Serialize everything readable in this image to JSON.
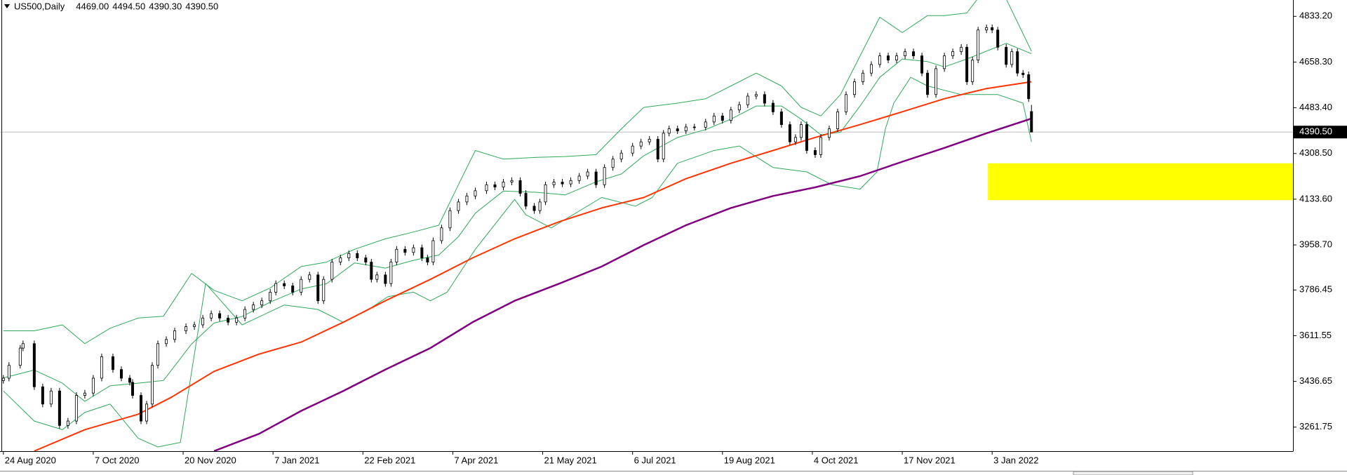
{
  "chart_data": {
    "type": "candlestick",
    "symbol": "US500,Daily",
    "header_values": [
      {
        "value": 4469,
        "label": "4469.00"
      },
      {
        "value": 4494.5,
        "label": "4494.50"
      },
      {
        "value": 4390.3,
        "label": "4390.30"
      },
      {
        "value": 4390.5,
        "label": "4390.50"
      }
    ],
    "xlim": [
      -1.2,
      459.1
    ],
    "ylim": [
      3169.8,
      4895.7
    ],
    "xticks": [
      {
        "value": 0,
        "label": "24 Aug 2020"
      },
      {
        "value": 32,
        "label": "7 Oct 2020"
      },
      {
        "value": 64,
        "label": "20 Nov 2020"
      },
      {
        "value": 96,
        "label": "7 Jan 2021"
      },
      {
        "value": 128,
        "label": "22 Feb 2021"
      },
      {
        "value": 160,
        "label": "7 Apr 2021"
      },
      {
        "value": 192,
        "label": "21 May 2021"
      },
      {
        "value": 224,
        "label": "6 Jul 2021"
      },
      {
        "value": 256,
        "label": "19 Aug 2021"
      },
      {
        "value": 288,
        "label": "4 Oct 2021"
      },
      {
        "value": 320,
        "label": "17 Nov 2021"
      },
      {
        "value": 352,
        "label": "3 Jan 2022"
      }
    ],
    "yticks": [
      {
        "value": 4833.2,
        "label": "4833.20"
      },
      {
        "value": 4658.3,
        "label": "4658.30"
      },
      {
        "value": 4483.4,
        "label": "4483.40"
      },
      {
        "value": 4308.5,
        "label": "4308.50"
      },
      {
        "value": 4133.6,
        "label": "4133.60"
      },
      {
        "value": 3958.7,
        "label": "3958.70"
      },
      {
        "value": 3786.45,
        "label": "3786.45"
      },
      {
        "value": 3611.55,
        "label": "3611.55"
      },
      {
        "value": 3436.65,
        "label": "3436.65"
      },
      {
        "value": 3261.75,
        "label": "3261.75"
      }
    ],
    "last_price": {
      "value": 4390.5,
      "label": "4390.50"
    },
    "zone": {
      "color": "#ffff00",
      "x_start": 350.5,
      "ylim": [
        4130,
        4271
      ]
    },
    "candles": {
      "x": [
        0,
        2,
        6,
        7,
        11,
        14,
        17,
        20,
        23,
        26,
        29,
        32,
        35,
        39,
        42,
        45,
        46,
        49,
        51,
        53,
        55,
        58,
        61,
        65,
        68,
        71,
        74,
        77,
        80,
        83,
        86,
        89,
        92,
        95,
        97,
        100,
        103,
        106,
        109,
        112,
        114,
        117,
        120,
        123,
        126,
        129,
        131,
        133,
        136,
        138,
        140,
        143,
        146,
        149,
        151,
        153,
        156,
        159,
        162,
        165,
        168,
        172,
        175,
        178,
        181,
        184,
        186,
        189,
        191,
        193,
        196,
        199,
        202,
        205,
        208,
        211,
        214,
        217,
        220,
        224,
        227,
        230,
        233,
        235,
        237,
        240,
        243,
        246,
        250,
        253,
        256,
        259,
        262,
        265,
        268,
        271,
        274,
        277,
        280,
        282,
        284,
        286,
        289,
        291,
        294,
        297,
        300,
        303,
        306,
        309,
        312,
        315,
        318,
        321,
        324,
        327,
        329,
        332,
        335,
        338,
        341,
        343,
        345,
        347,
        350,
        352,
        354,
        357,
        359,
        361,
        363,
        365,
        366
      ],
      "open": [
        3440,
        3449,
        3498,
        3564,
        3581,
        3416,
        3350,
        3400,
        3268,
        3285,
        3383,
        3392,
        3449,
        3531,
        3482,
        3449,
        3433,
        3383,
        3285,
        3350,
        3498,
        3581,
        3597,
        3630,
        3646,
        3653,
        3679,
        3696,
        3679,
        3663,
        3679,
        3712,
        3729,
        3745,
        3778,
        3811,
        3802,
        3778,
        3827,
        3844,
        3745,
        3827,
        3893,
        3909,
        3926,
        3909,
        3893,
        3827,
        3844,
        3811,
        3893,
        3942,
        3930,
        3948,
        3909,
        3893,
        3975,
        4024,
        4090,
        4123,
        4146,
        4166,
        4189,
        4180,
        4199,
        4205,
        4156,
        4107,
        4090,
        4123,
        4189,
        4199,
        4192,
        4205,
        4222,
        4238,
        4189,
        4255,
        4287,
        4310,
        4337,
        4353,
        4363,
        4287,
        4386,
        4403,
        4395,
        4410,
        4409,
        4429,
        4452,
        4435,
        4475,
        4495,
        4528,
        4534,
        4501,
        4468,
        4419,
        4353,
        4370,
        4419,
        4320,
        4304,
        4370,
        4403,
        4468,
        4534,
        4583,
        4616,
        4649,
        4682,
        4666,
        4682,
        4698,
        4682,
        4616,
        4534,
        4633,
        4682,
        4698,
        4715,
        4583,
        4666,
        4781,
        4790,
        4781,
        4715,
        4649,
        4698,
        4616,
        4610,
        4469
      ],
      "high": [
        3461,
        3510,
        3576,
        3593,
        3593,
        3428,
        3412,
        3412,
        3297,
        3395,
        3404,
        3461,
        3543,
        3543,
        3494,
        3461,
        3445,
        3395,
        3362,
        3510,
        3593,
        3609,
        3642,
        3658,
        3665,
        3691,
        3708,
        3708,
        3691,
        3691,
        3724,
        3741,
        3757,
        3790,
        3823,
        3823,
        3814,
        3839,
        3856,
        3856,
        3839,
        3905,
        3921,
        3938,
        3938,
        3921,
        3905,
        3856,
        3856,
        3905,
        3954,
        3954,
        3960,
        3960,
        3921,
        3987,
        4036,
        4102,
        4135,
        4158,
        4178,
        4201,
        4201,
        4211,
        4217,
        4217,
        4168,
        4119,
        4135,
        4201,
        4211,
        4211,
        4217,
        4234,
        4250,
        4250,
        4267,
        4299,
        4322,
        4349,
        4365,
        4375,
        4375,
        4398,
        4415,
        4415,
        4422,
        4422,
        4441,
        4464,
        4464,
        4487,
        4507,
        4540,
        4546,
        4546,
        4513,
        4480,
        4431,
        4382,
        4431,
        4431,
        4332,
        4382,
        4415,
        4480,
        4546,
        4595,
        4628,
        4661,
        4694,
        4694,
        4694,
        4710,
        4710,
        4694,
        4628,
        4645,
        4694,
        4710,
        4727,
        4727,
        4678,
        4793,
        4802,
        4802,
        4793,
        4727,
        4710,
        4710,
        4628,
        4622,
        4494.5
      ],
      "low": [
        3428,
        3437,
        3486,
        3552,
        3404,
        3338,
        3338,
        3256,
        3256,
        3273,
        3371,
        3380,
        3437,
        3470,
        3437,
        3421,
        3371,
        3273,
        3273,
        3338,
        3486,
        3569,
        3585,
        3618,
        3634,
        3641,
        3667,
        3667,
        3651,
        3651,
        3667,
        3700,
        3717,
        3733,
        3766,
        3790,
        3766,
        3766,
        3815,
        3733,
        3733,
        3815,
        3881,
        3897,
        3897,
        3881,
        3815,
        3815,
        3799,
        3799,
        3881,
        3918,
        3918,
        3897,
        3881,
        3881,
        3963,
        4012,
        4078,
        4111,
        4134,
        4154,
        4168,
        4168,
        4187,
        4144,
        4095,
        4078,
        4078,
        4111,
        4177,
        4180,
        4180,
        4193,
        4210,
        4177,
        4177,
        4243,
        4275,
        4298,
        4325,
        4341,
        4275,
        4275,
        4374,
        4383,
        4383,
        4397,
        4397,
        4417,
        4423,
        4423,
        4463,
        4483,
        4516,
        4489,
        4456,
        4407,
        4341,
        4341,
        4358,
        4308,
        4292,
        4292,
        4358,
        4391,
        4456,
        4522,
        4571,
        4604,
        4637,
        4654,
        4654,
        4670,
        4670,
        4604,
        4522,
        4522,
        4621,
        4670,
        4686,
        4571,
        4571,
        4654,
        4769,
        4769,
        4703,
        4637,
        4637,
        4604,
        4598,
        4506,
        4390.3
      ],
      "close": [
        3449,
        3498,
        3564,
        3581,
        3416,
        3350,
        3400,
        3268,
        3285,
        3383,
        3392,
        3449,
        3531,
        3482,
        3449,
        3433,
        3383,
        3285,
        3350,
        3498,
        3581,
        3597,
        3630,
        3646,
        3653,
        3679,
        3696,
        3679,
        3663,
        3679,
        3712,
        3729,
        3745,
        3778,
        3811,
        3802,
        3778,
        3827,
        3844,
        3745,
        3827,
        3893,
        3909,
        3926,
        3909,
        3893,
        3827,
        3844,
        3811,
        3893,
        3942,
        3930,
        3948,
        3909,
        3893,
        3975,
        4024,
        4090,
        4123,
        4146,
        4166,
        4189,
        4180,
        4199,
        4205,
        4156,
        4107,
        4090,
        4123,
        4189,
        4199,
        4192,
        4205,
        4222,
        4238,
        4189,
        4255,
        4287,
        4310,
        4337,
        4353,
        4363,
        4287,
        4386,
        4403,
        4395,
        4410,
        4409,
        4429,
        4452,
        4435,
        4475,
        4495,
        4528,
        4534,
        4501,
        4468,
        4419,
        4353,
        4370,
        4419,
        4320,
        4304,
        4370,
        4403,
        4468,
        4534,
        4583,
        4616,
        4649,
        4682,
        4666,
        4682,
        4698,
        4682,
        4616,
        4534,
        4633,
        4682,
        4698,
        4715,
        4583,
        4666,
        4781,
        4790,
        4781,
        4715,
        4649,
        4698,
        4616,
        4610,
        4518,
        4390.5
      ]
    },
    "overlays": [
      {
        "color": "#2fa85a",
        "width": 1,
        "x": [
          0,
          11,
          21,
          29,
          38,
          48,
          57,
          67,
          75,
          85,
          95,
          106,
          115,
          125,
          136,
          146,
          155,
          162,
          168,
          178,
          190,
          200,
          211,
          220,
          228,
          240,
          250,
          259,
          268,
          277,
          284,
          291,
          298,
          305,
          312,
          320,
          329,
          335,
          343,
          350,
          357,
          366
        ],
        "values": [
          3630,
          3630,
          3653,
          3581,
          3640,
          3679,
          3686,
          3850,
          3785,
          3745,
          3794,
          3876,
          3893,
          3942,
          3982,
          4008,
          4034,
          4189,
          4320,
          4287,
          4294,
          4297,
          4304,
          4403,
          4485,
          4501,
          4518,
          4567,
          4616,
          4567,
          4485,
          4452,
          4534,
          4682,
          4830,
          4771,
          4836,
          4836,
          4846,
          4945,
          4900,
          4700
        ]
      },
      {
        "color": "#2fa85a",
        "width": 1,
        "x": [
          0,
          11,
          21,
          29,
          38,
          48,
          57,
          67,
          75,
          85,
          95,
          106,
          115,
          125,
          136,
          146,
          155,
          162,
          168,
          178,
          190,
          200,
          211,
          220,
          228,
          240,
          250,
          259,
          268,
          277,
          284,
          291,
          298,
          305,
          312,
          320,
          329,
          335,
          343,
          350,
          357,
          366
        ],
        "values": [
          3450,
          3480,
          3430,
          3360,
          3420,
          3430,
          3440,
          3580,
          3660,
          3685,
          3740,
          3790,
          3810,
          3890,
          3870,
          3900,
          3920,
          3990,
          4080,
          4165,
          4160,
          4150,
          4200,
          4230,
          4300,
          4370,
          4400,
          4440,
          4490,
          4490,
          4440,
          4380,
          4390,
          4490,
          4600,
          4670,
          4660,
          4640,
          4670,
          4700,
          4730,
          4690
        ]
      },
      {
        "color": "#2fa85a",
        "width": 1,
        "x": [
          0,
          11,
          21,
          29,
          38,
          48,
          55,
          63,
          72,
          85,
          100,
          112,
          121,
          130,
          137,
          146,
          152,
          158,
          165,
          168,
          182,
          186,
          195,
          213,
          225,
          231,
          240,
          253,
          262,
          274,
          286,
          295,
          305,
          311,
          314,
          317,
          323,
          329,
          341,
          354,
          363,
          366
        ],
        "values": [
          3400,
          3285,
          3252,
          3318,
          3350,
          3219,
          3186,
          3203,
          3811,
          3653,
          3729,
          3712,
          3663,
          3712,
          3761,
          3778,
          3745,
          3778,
          3893,
          3942,
          4133,
          4074,
          4024,
          4140,
          4107,
          4140,
          4271,
          4320,
          4337,
          4255,
          4238,
          4189,
          4172,
          4238,
          4403,
          4501,
          4600,
          4567,
          4534,
          4534,
          4501,
          4353
        ]
      },
      {
        "color": "#ff3300",
        "width": 2,
        "x": [
          11,
          29,
          48,
          60,
          75,
          91,
          106,
          121,
          136,
          152,
          167,
          182,
          198,
          213,
          228,
          243,
          259,
          274,
          289,
          305,
          320,
          335,
          350,
          366
        ],
        "values": [
          3170,
          3252,
          3311,
          3377,
          3475,
          3541,
          3587,
          3663,
          3745,
          3827,
          3909,
          3982,
          4048,
          4100,
          4140,
          4212,
          4271,
          4320,
          4370,
          4419,
          4468,
          4518,
          4557,
          4583
        ]
      },
      {
        "color": "#800080",
        "width": 2.5,
        "x": [
          75,
          91,
          106,
          121,
          136,
          152,
          167,
          182,
          198,
          213,
          228,
          243,
          259,
          274,
          289,
          305,
          320,
          335,
          350,
          366
        ],
        "values": [
          3170,
          3236,
          3324,
          3400,
          3482,
          3564,
          3663,
          3745,
          3811,
          3876,
          3958,
          4034,
          4100,
          4146,
          4179,
          4222,
          4277,
          4330,
          4386,
          4442
        ]
      }
    ]
  }
}
